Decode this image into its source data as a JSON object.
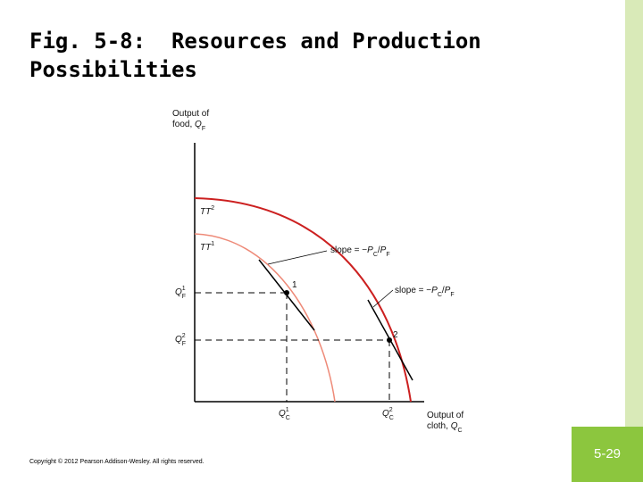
{
  "title": "Fig. 5-8:  Resources and Production Possibilities",
  "figure": {
    "labels": [
      {
        "lines": [
          [
            {
              "text": "Output of"
            }
          ],
          [
            {
              "text": "food, "
            },
            {
              "text": "Q",
              "role": "var"
            },
            {
              "text": "F",
              "role": "sub"
            }
          ]
        ]
      },
      {
        "lines": [
          [
            {
              "text": "Output of"
            }
          ],
          [
            {
              "text": "cloth, "
            },
            {
              "text": "Q",
              "role": "var"
            },
            {
              "text": "C",
              "role": "sub"
            }
          ]
        ]
      },
      {
        "lines": [
          [
            {
              "text": "TT",
              "role": "var"
            },
            {
              "text": "2",
              "role": "sup"
            }
          ]
        ]
      },
      {
        "lines": [
          [
            {
              "text": "TT",
              "role": "var"
            },
            {
              "text": "1",
              "role": "sup"
            }
          ]
        ]
      },
      {
        "lines": [
          [
            {
              "text": "slope = −"
            },
            {
              "text": "P",
              "role": "var"
            },
            {
              "text": "C",
              "role": "sub"
            },
            {
              "text": "/"
            },
            {
              "text": "P",
              "role": "var"
            },
            {
              "text": "F",
              "role": "sub"
            }
          ]
        ]
      },
      {
        "lines": [
          [
            {
              "text": "slope = −"
            },
            {
              "text": "P",
              "role": "var"
            },
            {
              "text": "C",
              "role": "sub"
            },
            {
              "text": "/"
            },
            {
              "text": "P",
              "role": "var"
            },
            {
              "text": "F",
              "role": "sub"
            }
          ]
        ]
      },
      {
        "lines": [
          [
            {
              "text": "Q",
              "role": "var"
            },
            {
              "text": "1",
              "role": "sup"
            },
            {
              "text": "F",
              "role": "sub"
            }
          ]
        ]
      },
      {
        "lines": [
          [
            {
              "text": "Q",
              "role": "var"
            },
            {
              "text": "2",
              "role": "sup"
            },
            {
              "text": "F",
              "role": "sub"
            }
          ]
        ]
      },
      {
        "lines": [
          [
            {
              "text": "Q",
              "role": "var"
            },
            {
              "text": "1",
              "role": "sup"
            },
            {
              "text": "C",
              "role": "sub"
            }
          ]
        ]
      },
      {
        "lines": [
          [
            {
              "text": "Q",
              "role": "var"
            },
            {
              "text": "2",
              "role": "sup"
            },
            {
              "text": "C",
              "role": "sub"
            }
          ]
        ]
      },
      {
        "lines": [
          [
            {
              "text": "1"
            }
          ]
        ]
      },
      {
        "lines": [
          [
            {
              "text": "2"
            }
          ]
        ]
      }
    ]
  },
  "copyright": "Copyright © 2012 Pearson Addison-Wesley. All rights reserved.",
  "slide_number": "5-29"
}
